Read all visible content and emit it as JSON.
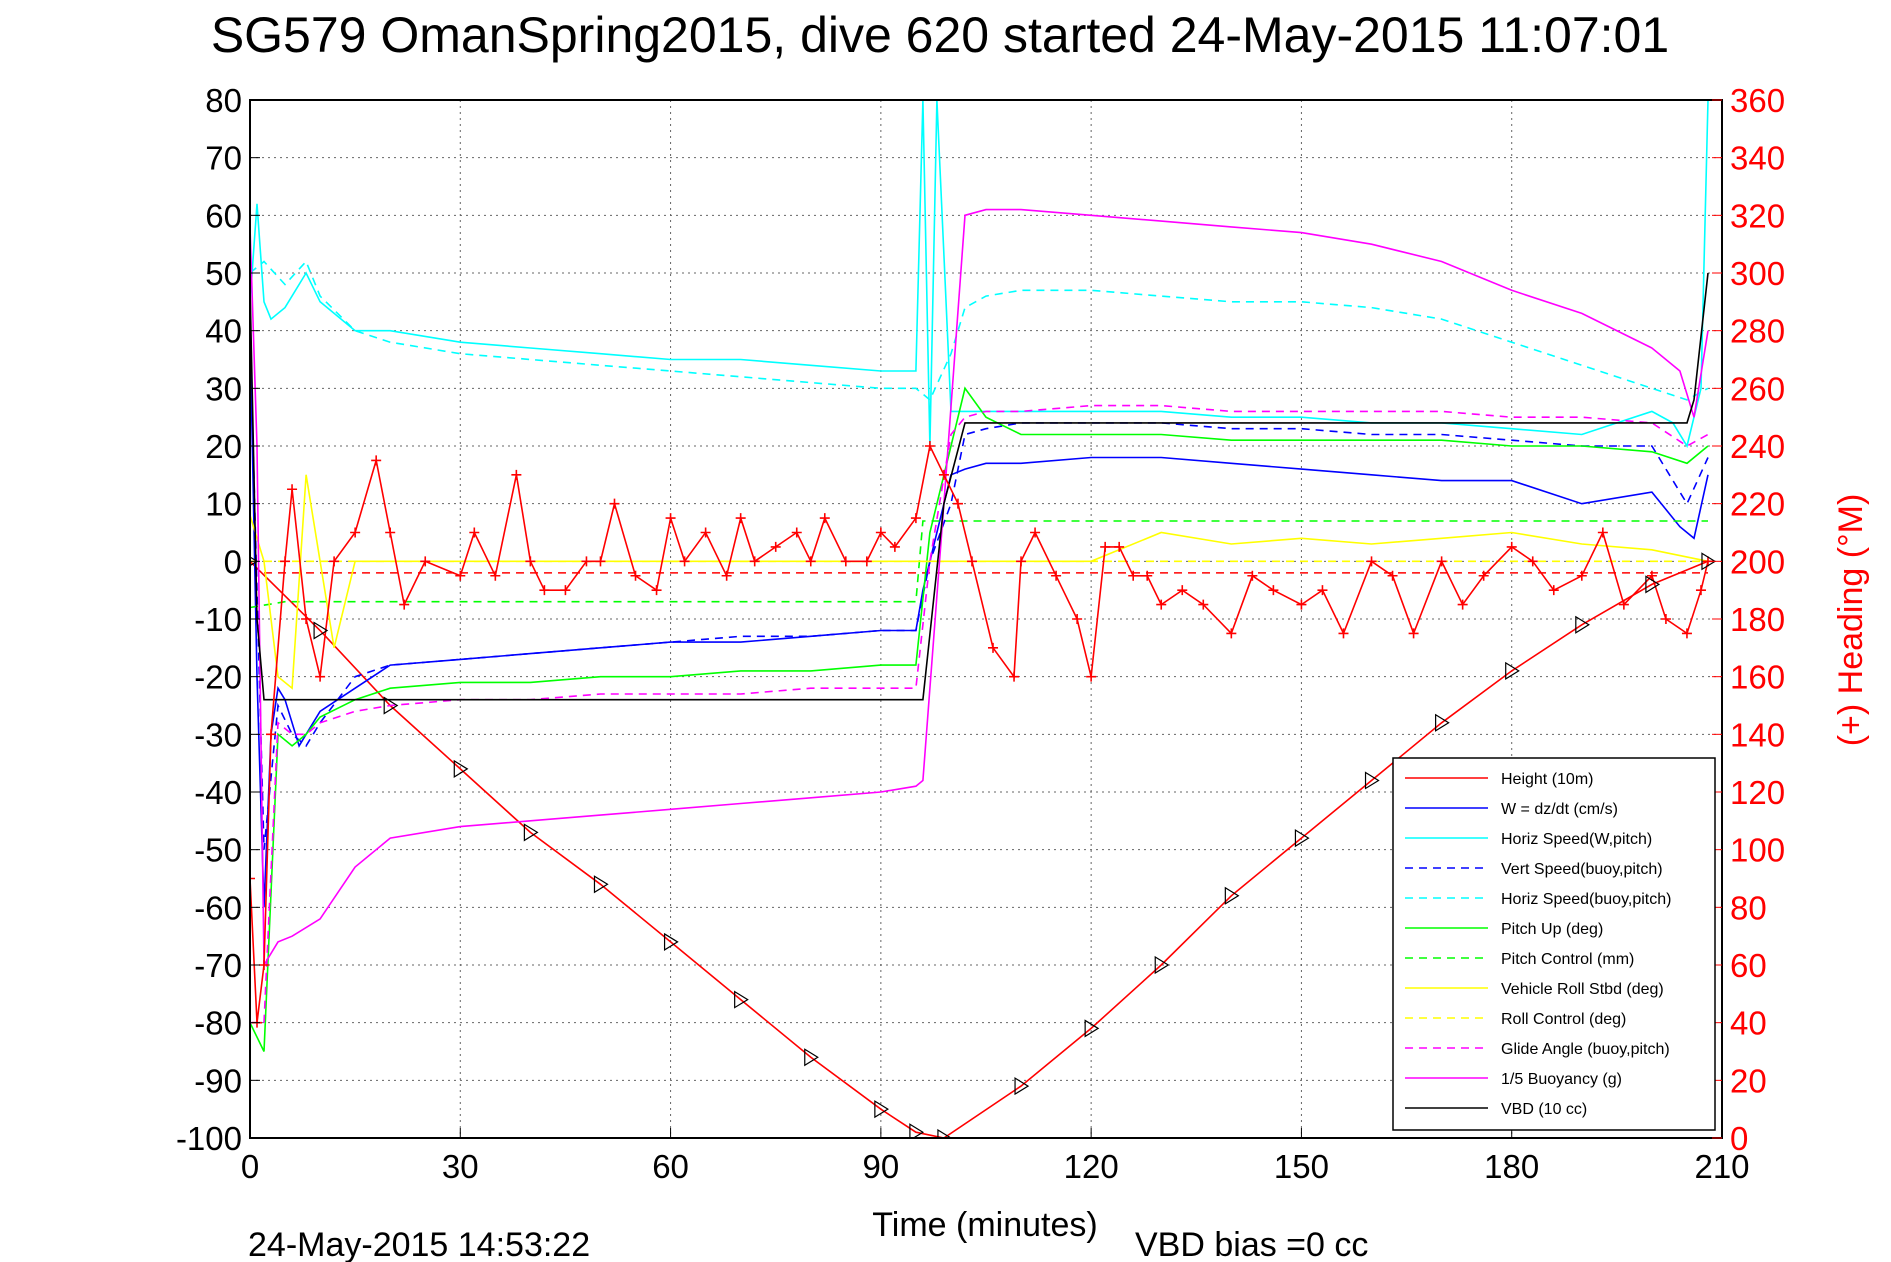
{
  "title": "SG579 OmanSpring2015, dive 620 started 24-May-2015 11:07:01",
  "xlabel": "Time (minutes)",
  "ylabel_right": "(+) Heading (°M)",
  "footer_left": "24-May-2015 14:53:22",
  "footer_right": "VBD bias =0 cc",
  "colors": {
    "red": "#ff0000",
    "blue": "#0000ff",
    "cyan": "#00ffff",
    "green": "#00ff00",
    "yellow": "#ffff00",
    "magenta": "#ff00ff",
    "black": "#000000"
  },
  "chart_data": {
    "type": "line",
    "xlim": [
      0,
      210
    ],
    "ylim": [
      -100,
      80
    ],
    "ylim_right": [
      0,
      360
    ],
    "grid": true,
    "legend_position": "bottom-right",
    "xticks": [
      "0",
      "30",
      "60",
      "90",
      "120",
      "150",
      "180",
      "210"
    ],
    "yticks": [
      "80",
      "70",
      "60",
      "50",
      "40",
      "30",
      "20",
      "10",
      "0",
      "-10",
      "-20",
      "-30",
      "-40",
      "-50",
      "-60",
      "-70",
      "-80",
      "-90",
      "-100"
    ],
    "yticks_right": [
      "360",
      "340",
      "320",
      "300",
      "280",
      "260",
      "240",
      "220",
      "200",
      "180",
      "160",
      "140",
      "120",
      "100",
      "80",
      "60",
      "40",
      "20",
      "0"
    ],
    "series": [
      {
        "name": "Height (10m)",
        "color": "#ff0000",
        "dash": false,
        "x": [
          0,
          10,
          20,
          30,
          40,
          50,
          60,
          70,
          80,
          90,
          95,
          99,
          110,
          120,
          130,
          140,
          150,
          160,
          170,
          180,
          190,
          200,
          208
        ],
        "y": [
          0,
          -12,
          -25,
          -36,
          -47,
          -56,
          -66,
          -76,
          -86,
          -95,
          -99,
          -100,
          -91,
          -81,
          -70,
          -58,
          -48,
          -38,
          -28,
          -19,
          -11,
          -4,
          0
        ]
      },
      {
        "name": "W = dz/dt (cm/s)",
        "color": "#0000ff",
        "dash": false,
        "x": [
          0,
          1,
          2,
          3,
          4,
          5,
          6,
          7,
          8,
          10,
          15,
          20,
          30,
          40,
          50,
          60,
          70,
          80,
          90,
          95,
          96,
          98,
          100,
          102,
          105,
          110,
          120,
          130,
          140,
          150,
          160,
          170,
          180,
          190,
          200,
          204,
          206,
          208
        ],
        "y": [
          40,
          -20,
          -60,
          -30,
          -22,
          -24,
          -28,
          -32,
          -30,
          -26,
          -22,
          -18,
          -17,
          -16,
          -15,
          -14,
          -14,
          -13,
          -12,
          -12,
          -5,
          5,
          15,
          16,
          17,
          17,
          18,
          18,
          17,
          16,
          15,
          14,
          14,
          10,
          12,
          6,
          4,
          15
        ]
      },
      {
        "name": "Horiz Speed(W,pitch)",
        "color": "#00ffff",
        "dash": false,
        "x": [
          0,
          1,
          2,
          3,
          5,
          8,
          10,
          15,
          20,
          30,
          40,
          50,
          60,
          70,
          80,
          90,
          95,
          96,
          97,
          98,
          100,
          102,
          105,
          110,
          120,
          130,
          140,
          150,
          160,
          170,
          180,
          190,
          195,
          200,
          203,
          205,
          207,
          208
        ],
        "y": [
          45,
          62,
          45,
          42,
          44,
          50,
          45,
          40,
          40,
          38,
          37,
          36,
          35,
          35,
          34,
          33,
          33,
          80,
          20,
          80,
          26,
          26,
          26,
          26,
          26,
          26,
          25,
          25,
          24,
          24,
          23,
          22,
          24,
          26,
          24,
          20,
          30,
          80
        ]
      },
      {
        "name": "Vert Speed(buoy,pitch)",
        "color": "#0000ff",
        "dash": true,
        "x": [
          0,
          2,
          4,
          6,
          8,
          10,
          15,
          20,
          30,
          40,
          50,
          60,
          70,
          80,
          90,
          95,
          97,
          100,
          102,
          105,
          110,
          120,
          130,
          140,
          150,
          160,
          170,
          180,
          190,
          200,
          205,
          208
        ],
        "y": [
          40,
          -50,
          -25,
          -30,
          -32,
          -28,
          -20,
          -18,
          -17,
          -16,
          -15,
          -14,
          -13,
          -13,
          -12,
          -12,
          0,
          10,
          22,
          23,
          24,
          24,
          24,
          23,
          23,
          22,
          22,
          21,
          20,
          20,
          10,
          18
        ]
      },
      {
        "name": "Horiz Speed(buoy,pitch)",
        "color": "#00ffff",
        "dash": true,
        "x": [
          0,
          2,
          5,
          8,
          10,
          15,
          20,
          30,
          40,
          50,
          60,
          70,
          80,
          90,
          95,
          97,
          100,
          102,
          105,
          110,
          120,
          130,
          140,
          150,
          160,
          170,
          180,
          190,
          200,
          205,
          208
        ],
        "y": [
          50,
          52,
          48,
          52,
          46,
          40,
          38,
          36,
          35,
          34,
          33,
          32,
          31,
          30,
          30,
          28,
          36,
          44,
          46,
          47,
          47,
          46,
          45,
          45,
          44,
          42,
          38,
          34,
          30,
          28,
          30
        ]
      },
      {
        "name": "Pitch Up (deg)",
        "color": "#00ff00",
        "dash": false,
        "x": [
          0,
          2,
          4,
          6,
          8,
          10,
          15,
          20,
          30,
          40,
          50,
          60,
          70,
          80,
          90,
          95,
          97,
          100,
          102,
          105,
          110,
          120,
          130,
          140,
          150,
          160,
          170,
          180,
          190,
          200,
          205,
          208
        ],
        "y": [
          -80,
          -85,
          -30,
          -32,
          -30,
          -27,
          -24,
          -22,
          -21,
          -21,
          -20,
          -20,
          -19,
          -19,
          -18,
          -18,
          5,
          20,
          30,
          25,
          22,
          22,
          22,
          21,
          21,
          21,
          21,
          20,
          20,
          19,
          17,
          20
        ]
      },
      {
        "name": "Pitch Control (mm)",
        "color": "#00ff00",
        "dash": true,
        "x": [
          0,
          5,
          10,
          20,
          30,
          40,
          50,
          60,
          70,
          80,
          90,
          95,
          96,
          100,
          110,
          120,
          130,
          140,
          150,
          160,
          170,
          180,
          190,
          200,
          205,
          208
        ],
        "y": [
          -8,
          -7,
          -7,
          -7,
          -7,
          -7,
          -7,
          -7,
          -7,
          -7,
          -7,
          -7,
          7,
          7,
          7,
          7,
          7,
          7,
          7,
          7,
          7,
          7,
          7,
          7,
          7,
          7
        ]
      },
      {
        "name": "Vehicle Roll Stbd (deg)",
        "color": "#ffff00",
        "dash": false,
        "x": [
          0,
          2,
          4,
          6,
          8,
          10,
          12,
          15,
          20,
          30,
          40,
          50,
          60,
          70,
          80,
          90,
          95,
          100,
          105,
          110,
          120,
          130,
          140,
          150,
          160,
          170,
          180,
          190,
          200,
          208
        ],
        "y": [
          8,
          0,
          -20,
          -22,
          15,
          0,
          -15,
          0,
          0,
          0,
          0,
          0,
          0,
          0,
          0,
          0,
          0,
          0,
          0,
          0,
          0,
          5,
          3,
          4,
          3,
          4,
          5,
          3,
          2,
          0
        ]
      },
      {
        "name": "Roll Control (deg)",
        "color": "#ffff00",
        "dash": true,
        "x": [
          0,
          5,
          10,
          20,
          40,
          60,
          80,
          95,
          100,
          120,
          140,
          160,
          180,
          200,
          208
        ],
        "y": [
          0,
          0,
          0,
          0,
          0,
          0,
          0,
          0,
          0,
          0,
          0,
          0,
          0,
          0,
          0
        ]
      },
      {
        "name": "Glide Angle (buoy,pitch)",
        "color": "#ff00ff",
        "dash": true,
        "x": [
          0,
          2,
          4,
          6,
          8,
          10,
          15,
          20,
          30,
          40,
          50,
          60,
          70,
          80,
          90,
          95,
          97,
          100,
          102,
          105,
          110,
          120,
          130,
          140,
          150,
          160,
          170,
          180,
          190,
          200,
          205,
          208
        ],
        "y": [
          -80,
          -80,
          -28,
          -30,
          -30,
          -28,
          -26,
          -25,
          -24,
          -24,
          -23,
          -23,
          -23,
          -22,
          -22,
          -22,
          0,
          22,
          25,
          26,
          26,
          27,
          27,
          26,
          26,
          26,
          26,
          25,
          25,
          24,
          20,
          22
        ]
      },
      {
        "name": "1/5 Buoyancy (g)",
        "color": "#ff00ff",
        "dash": false,
        "x": [
          0,
          1,
          2,
          4,
          6,
          10,
          15,
          20,
          30,
          40,
          50,
          60,
          70,
          80,
          90,
          95,
          96,
          99,
          102,
          105,
          110,
          120,
          130,
          140,
          150,
          160,
          170,
          180,
          190,
          200,
          204,
          206,
          208
        ],
        "y": [
          58,
          20,
          -70,
          -66,
          -65,
          -62,
          -53,
          -48,
          -46,
          -45,
          -44,
          -43,
          -42,
          -41,
          -40,
          -39,
          -38,
          10,
          60,
          61,
          61,
          60,
          59,
          58,
          57,
          55,
          52,
          47,
          43,
          37,
          33,
          25,
          40
        ]
      },
      {
        "name": "VBD (10 cc)",
        "color": "#000000",
        "dash": false,
        "x": [
          0,
          1,
          2,
          5,
          10,
          20,
          40,
          60,
          80,
          95,
          96,
          99,
          102,
          110,
          130,
          150,
          170,
          190,
          200,
          205,
          206,
          208
        ],
        "y": [
          48,
          -10,
          -24,
          -24,
          -24,
          -24,
          -24,
          -24,
          -24,
          -24,
          -24,
          10,
          24,
          24,
          24,
          24,
          24,
          24,
          24,
          24,
          28,
          50
        ]
      },
      {
        "name": "Heading",
        "axis": "right",
        "color": "#ff0000",
        "dash": false,
        "marker": "+",
        "x": [
          0,
          1,
          2,
          3,
          5,
          6,
          8,
          10,
          12,
          15,
          18,
          20,
          22,
          25,
          30,
          32,
          35,
          38,
          40,
          42,
          45,
          48,
          50,
          52,
          55,
          58,
          60,
          62,
          65,
          68,
          70,
          72,
          75,
          78,
          80,
          82,
          85,
          88,
          90,
          92,
          95,
          97,
          99,
          101,
          103,
          106,
          109,
          110,
          112,
          115,
          118,
          120,
          122,
          124,
          126,
          128,
          130,
          133,
          136,
          140,
          143,
          146,
          150,
          153,
          156,
          160,
          163,
          166,
          170,
          173,
          176,
          180,
          183,
          186,
          190,
          193,
          196,
          200,
          202,
          205,
          207,
          208
        ],
        "y": [
          90,
          40,
          60,
          140,
          200,
          225,
          180,
          160,
          200,
          210,
          235,
          210,
          185,
          200,
          195,
          210,
          195,
          230,
          200,
          190,
          190,
          200,
          200,
          220,
          195,
          190,
          215,
          200,
          210,
          195,
          215,
          200,
          205,
          210,
          200,
          215,
          200,
          200,
          210,
          205,
          215,
          240,
          230,
          220,
          200,
          170,
          160,
          200,
          210,
          195,
          180,
          160,
          205,
          205,
          195,
          195,
          185,
          190,
          185,
          175,
          195,
          190,
          185,
          190,
          175,
          200,
          195,
          175,
          200,
          185,
          195,
          205,
          200,
          190,
          195,
          210,
          185,
          195,
          180,
          175,
          190,
          200
        ]
      }
    ]
  }
}
